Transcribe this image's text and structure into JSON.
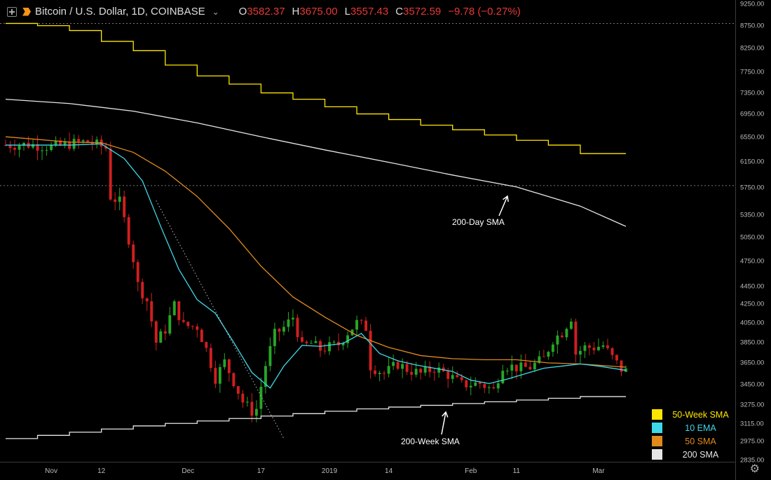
{
  "header": {
    "symbol": "Bitcoin / U.S. Dollar, 1D, COINBASE",
    "open_label": "O",
    "open": "3582.37",
    "high_label": "H",
    "high": "3675.00",
    "low_label": "L",
    "low": "3557.43",
    "close_label": "C",
    "close": "3572.59",
    "change": "−9.78 (−0.27%)"
  },
  "icons": {
    "add": "plus-square-icon",
    "symbol": "bitcoin-logo-icon",
    "menu": "chevron-down-icon",
    "settings": "gear-icon"
  },
  "colors": {
    "background": "#000000",
    "up_candle": "#26a626",
    "down_candle": "#d11f1f",
    "sma50w": "#ffe600",
    "ema10": "#3ed8e8",
    "sma50": "#e08a1e",
    "sma200": "#e6e6e6"
  },
  "annotations": {
    "sma200d": "200-Day SMA",
    "sma200w": "200-Week SMA"
  },
  "chart_data": {
    "type": "line",
    "title": "Bitcoin / U.S. Dollar, 1D, COINBASE",
    "y_scale": "log",
    "ylim": [
      2835,
      9250
    ],
    "y_ticks": [
      9250,
      8750,
      8250,
      7750,
      7350,
      6950,
      6550,
      6150,
      5750,
      5350,
      5050,
      4750,
      4450,
      4250,
      4050,
      3850,
      3650,
      3450,
      3275,
      3115,
      2975,
      2835
    ],
    "y_tick_labels": [
      "9250.00",
      "8750.00",
      "8250.00",
      "7750.00",
      "7350.00",
      "6950.00",
      "6550.00",
      "6150.00",
      "5750.00",
      "5350.00",
      "5050.00",
      "4750.00",
      "4450.00",
      "4250.00",
      "4050.00",
      "3850.00",
      "3650.00",
      "3450.00",
      "3275.00",
      "3115.00",
      "2975.00",
      "2835.00"
    ],
    "x_range": [
      "2018-10-22",
      "2019-03-07"
    ],
    "x_tick_labels": [
      {
        "date": "2018-11-01",
        "label": "Nov"
      },
      {
        "date": "2018-11-12",
        "label": "12"
      },
      {
        "date": "2018-12-01",
        "label": "Dec"
      },
      {
        "date": "2018-12-17",
        "label": "17"
      },
      {
        "date": "2019-01-01",
        "label": "2019"
      },
      {
        "date": "2019-01-14",
        "label": "14"
      },
      {
        "date": "2019-02-01",
        "label": "Feb"
      },
      {
        "date": "2019-02-11",
        "label": "11"
      },
      {
        "date": "2019-03-01",
        "label": "Mar"
      }
    ],
    "horizontal_dotted_levels": [
      8800,
      5780
    ],
    "legend_position": "bottom-right",
    "legend": [
      {
        "name": "50-Week SMA",
        "color": "#ffe600"
      },
      {
        "name": "10 EMA",
        "color": "#3ed8e8"
      },
      {
        "name": "50 SMA",
        "color": "#e08a1e"
      },
      {
        "name": "200 SMA",
        "color": "#e6e6e6"
      }
    ],
    "ohlc_anchors": [
      [
        "2018-10-22",
        6420
      ],
      [
        "2018-10-27",
        6430
      ],
      [
        "2018-11-01",
        6390
      ],
      [
        "2018-11-05",
        6440
      ],
      [
        "2018-11-09",
        6480
      ],
      [
        "2018-11-13",
        6370
      ],
      [
        "2018-11-14",
        5620
      ],
      [
        "2018-11-16",
        5540
      ],
      [
        "2018-11-19",
        4780
      ],
      [
        "2018-11-20",
        4470
      ],
      [
        "2018-11-22",
        4290
      ],
      [
        "2018-11-24",
        3850
      ],
      [
        "2018-11-26",
        3980
      ],
      [
        "2018-11-28",
        4240
      ],
      [
        "2018-11-30",
        4020
      ],
      [
        "2018-12-03",
        4010
      ],
      [
        "2018-12-05",
        3780
      ],
      [
        "2018-12-07",
        3510
      ],
      [
        "2018-12-09",
        3660
      ],
      [
        "2018-12-11",
        3480
      ],
      [
        "2018-12-13",
        3300
      ],
      [
        "2018-12-15",
        3220
      ],
      [
        "2018-12-16",
        3240
      ],
      [
        "2018-12-18",
        3630
      ],
      [
        "2018-12-20",
        3930
      ],
      [
        "2018-12-22",
        4000
      ],
      [
        "2018-12-24",
        4110
      ],
      [
        "2018-12-26",
        3800
      ],
      [
        "2018-12-28",
        3840
      ],
      [
        "2018-12-30",
        3780
      ],
      [
        "2019-01-03",
        3830
      ],
      [
        "2019-01-05",
        3950
      ],
      [
        "2019-01-07",
        4050
      ],
      [
        "2019-01-09",
        4000
      ],
      [
        "2019-01-10",
        3620
      ],
      [
        "2019-01-13",
        3550
      ],
      [
        "2019-01-16",
        3640
      ],
      [
        "2019-01-18",
        3590
      ],
      [
        "2019-01-21",
        3550
      ],
      [
        "2019-01-24",
        3600
      ],
      [
        "2019-01-27",
        3540
      ],
      [
        "2019-01-30",
        3450
      ],
      [
        "2019-02-03",
        3460
      ],
      [
        "2019-02-06",
        3400
      ],
      [
        "2019-02-08",
        3630
      ],
      [
        "2019-02-12",
        3600
      ],
      [
        "2019-02-14",
        3610
      ],
      [
        "2019-02-17",
        3690
      ],
      [
        "2019-02-19",
        3880
      ],
      [
        "2019-02-21",
        3950
      ],
      [
        "2019-02-23",
        4110
      ],
      [
        "2019-02-24",
        3740
      ],
      [
        "2019-02-26",
        3800
      ],
      [
        "2019-02-28",
        3800
      ],
      [
        "2019-03-02",
        3820
      ],
      [
        "2019-03-04",
        3700
      ],
      [
        "2019-03-06",
        3590
      ],
      [
        "2019-03-07",
        3573
      ]
    ],
    "series": [
      {
        "name": "50-Week SMA",
        "color": "#ffe600",
        "step": true,
        "points": [
          [
            "2018-10-22",
            8800
          ],
          [
            "2018-10-29",
            8750
          ],
          [
            "2018-11-05",
            8640
          ],
          [
            "2018-11-12",
            8400
          ],
          [
            "2018-11-19",
            8200
          ],
          [
            "2018-11-26",
            7900
          ],
          [
            "2018-12-03",
            7680
          ],
          [
            "2018-12-10",
            7520
          ],
          [
            "2018-12-17",
            7350
          ],
          [
            "2018-12-24",
            7230
          ],
          [
            "2018-12-31",
            7090
          ],
          [
            "2019-01-07",
            6960
          ],
          [
            "2019-01-14",
            6860
          ],
          [
            "2019-01-21",
            6760
          ],
          [
            "2019-01-28",
            6680
          ],
          [
            "2019-02-04",
            6590
          ],
          [
            "2019-02-11",
            6500
          ],
          [
            "2019-02-18",
            6420
          ],
          [
            "2019-02-25",
            6280
          ],
          [
            "2019-03-07",
            6280
          ]
        ]
      },
      {
        "name": "200 SMA",
        "color": "#e6e6e6",
        "points": [
          [
            "2018-10-22",
            7230
          ],
          [
            "2018-11-05",
            7150
          ],
          [
            "2018-11-19",
            7010
          ],
          [
            "2018-12-03",
            6800
          ],
          [
            "2018-12-17",
            6560
          ],
          [
            "2018-12-31",
            6340
          ],
          [
            "2019-01-14",
            6140
          ],
          [
            "2019-01-28",
            5940
          ],
          [
            "2019-02-11",
            5760
          ],
          [
            "2019-02-25",
            5480
          ],
          [
            "2019-03-07",
            5200
          ]
        ]
      },
      {
        "name": "50 SMA",
        "color": "#e08a1e",
        "points": [
          [
            "2018-10-22",
            6560
          ],
          [
            "2018-11-05",
            6470
          ],
          [
            "2018-11-12",
            6460
          ],
          [
            "2018-11-19",
            6300
          ],
          [
            "2018-11-26",
            6000
          ],
          [
            "2018-12-03",
            5620
          ],
          [
            "2018-12-10",
            5170
          ],
          [
            "2018-12-17",
            4690
          ],
          [
            "2018-12-24",
            4330
          ],
          [
            "2018-12-31",
            4110
          ],
          [
            "2019-01-07",
            3920
          ],
          [
            "2019-01-14",
            3800
          ],
          [
            "2019-01-21",
            3720
          ],
          [
            "2019-01-28",
            3690
          ],
          [
            "2019-02-04",
            3680
          ],
          [
            "2019-02-11",
            3680
          ],
          [
            "2019-02-18",
            3650
          ],
          [
            "2019-02-25",
            3640
          ],
          [
            "2019-03-07",
            3610
          ]
        ]
      },
      {
        "name": "10 EMA",
        "color": "#3ed8e8",
        "points": [
          [
            "2018-10-22",
            6420
          ],
          [
            "2018-11-05",
            6420
          ],
          [
            "2018-11-12",
            6440
          ],
          [
            "2018-11-17",
            6200
          ],
          [
            "2018-11-21",
            5850
          ],
          [
            "2018-11-25",
            5200
          ],
          [
            "2018-11-29",
            4650
          ],
          [
            "2018-12-03",
            4300
          ],
          [
            "2018-12-07",
            4150
          ],
          [
            "2018-12-11",
            3850
          ],
          [
            "2018-12-15",
            3560
          ],
          [
            "2018-12-19",
            3420
          ],
          [
            "2018-12-22",
            3620
          ],
          [
            "2018-12-26",
            3820
          ],
          [
            "2018-12-30",
            3810
          ],
          [
            "2019-01-04",
            3840
          ],
          [
            "2019-01-08",
            3940
          ],
          [
            "2019-01-12",
            3740
          ],
          [
            "2019-01-16",
            3670
          ],
          [
            "2019-01-20",
            3630
          ],
          [
            "2019-01-24",
            3600
          ],
          [
            "2019-01-28",
            3570
          ],
          [
            "2019-02-01",
            3490
          ],
          [
            "2019-02-05",
            3460
          ],
          [
            "2019-02-09",
            3500
          ],
          [
            "2019-02-13",
            3550
          ],
          [
            "2019-02-17",
            3600
          ],
          [
            "2019-02-21",
            3620
          ],
          [
            "2019-02-25",
            3640
          ],
          [
            "2019-03-01",
            3620
          ],
          [
            "2019-03-07",
            3580
          ]
        ]
      },
      {
        "name": "200-Week SMA",
        "color": "#e6e6e6",
        "step": true,
        "points": [
          [
            "2018-10-22",
            3000
          ],
          [
            "2018-10-29",
            3025
          ],
          [
            "2018-11-05",
            3050
          ],
          [
            "2018-11-12",
            3075
          ],
          [
            "2018-11-19",
            3100
          ],
          [
            "2018-11-26",
            3120
          ],
          [
            "2018-12-03",
            3140
          ],
          [
            "2018-12-10",
            3160
          ],
          [
            "2018-12-17",
            3180
          ],
          [
            "2018-12-24",
            3200
          ],
          [
            "2018-12-31",
            3220
          ],
          [
            "2019-01-07",
            3240
          ],
          [
            "2019-01-14",
            3255
          ],
          [
            "2019-01-21",
            3270
          ],
          [
            "2019-01-28",
            3285
          ],
          [
            "2019-02-04",
            3300
          ],
          [
            "2019-02-11",
            3315
          ],
          [
            "2019-02-18",
            3330
          ],
          [
            "2019-02-25",
            3345
          ],
          [
            "2019-03-07",
            3345
          ]
        ]
      },
      {
        "name": "Trendline",
        "color": "#bbbbbb",
        "dotted": true,
        "points": [
          [
            "2018-11-24",
            5560
          ],
          [
            "2018-12-22",
            3000
          ]
        ]
      }
    ]
  }
}
